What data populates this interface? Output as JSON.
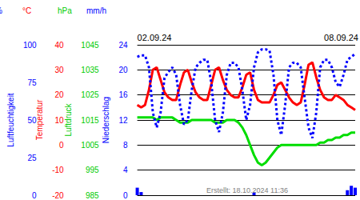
{
  "chart_data": {
    "type": "line",
    "grid": true,
    "footnote": "Erstellt: 18.10.2024 11:36",
    "categories": [
      "02.09.24",
      null,
      null,
      null,
      null,
      null,
      null,
      null,
      null,
      null,
      null,
      null,
      null,
      null,
      null,
      null,
      null,
      null,
      null,
      null,
      null,
      null,
      null,
      null,
      null,
      null,
      null,
      null,
      null,
      null,
      null,
      null,
      null,
      null,
      null,
      null,
      null,
      null,
      null,
      null,
      null,
      null,
      null,
      null,
      null,
      null,
      null,
      null,
      "08.09.24",
      null,
      null,
      null,
      null,
      null,
      null,
      null,
      null
    ],
    "axes": [
      {
        "title": "Luftfeuchtigkeit",
        "unit": "%",
        "color": "#0000ff",
        "ylim": [
          0,
          100
        ],
        "yticks": [
          0,
          25,
          50,
          75,
          100
        ]
      },
      {
        "title": "Temperatur",
        "unit": "°C",
        "color": "#ff0000",
        "ylim": [
          -20,
          40
        ],
        "yticks": [
          -20,
          -10,
          0,
          10,
          20,
          30,
          40
        ]
      },
      {
        "title": "Luftdruck",
        "unit": "hPa",
        "color": "#00cc00",
        "ylim": [
          985,
          1045
        ],
        "yticks": [
          985,
          995,
          1005,
          1015,
          1025,
          1035,
          1045
        ]
      },
      {
        "title": "Niederschlag",
        "unit": "mm/h",
        "color": "#0000ff",
        "ylim": [
          0,
          24
        ],
        "yticks": [
          0,
          4,
          8,
          12,
          16,
          20,
          24
        ]
      }
    ],
    "series": [
      {
        "axis": "Niederschlag",
        "type": "bar",
        "color": "#0000ff",
        "values": [
          1.2,
          0.5,
          0,
          0,
          0,
          0,
          0,
          0,
          0,
          0,
          0,
          0,
          0,
          0,
          0,
          0,
          0,
          0,
          0,
          0,
          0,
          0,
          0,
          0,
          0,
          0,
          0,
          0,
          0,
          0,
          0.4,
          0,
          0,
          0,
          0,
          0,
          0,
          0,
          0,
          0,
          0,
          0,
          0,
          0,
          0,
          0,
          0,
          0,
          0,
          0,
          0,
          0,
          0,
          0,
          0.8,
          1.5,
          1.2
        ]
      },
      {
        "axis": "Luftdruck",
        "type": "line",
        "line_style": "solid",
        "color": "#00dd00",
        "values": [
          1016,
          1016,
          1016,
          1016,
          1016,
          1015,
          1016,
          1016,
          1016,
          1016,
          1015,
          1014,
          1014,
          1014,
          1015,
          1015,
          1015,
          1015,
          1015,
          1015,
          1014,
          1014,
          1014,
          1015,
          1015,
          1015,
          1014,
          1012,
          1009,
          1005,
          1001,
          998,
          997,
          998,
          1000,
          1002,
          1004,
          1005,
          1005,
          1005,
          1005,
          1005,
          1005,
          1005,
          1005,
          1005,
          1005,
          1006,
          1006,
          1007,
          1007,
          1008,
          1008,
          1009,
          1009,
          1010,
          1010
        ]
      },
      {
        "axis": "Temperatur",
        "type": "line",
        "line_style": "solid",
        "color": "#ff0000",
        "values": [
          16,
          15,
          16,
          22,
          30,
          31,
          26,
          21,
          19,
          18,
          18,
          24,
          29,
          30,
          25,
          21,
          19,
          18,
          18,
          24,
          30,
          31,
          26,
          22,
          20,
          19,
          19,
          23,
          28,
          29,
          22,
          18,
          17,
          17,
          17,
          20,
          24,
          25,
          22,
          19,
          17,
          16,
          17,
          24,
          32,
          33,
          27,
          22,
          19,
          18,
          18,
          20,
          19,
          18,
          16,
          15,
          14
        ]
      },
      {
        "axis": "Luftfeuchtigkeit",
        "type": "line",
        "line_style": "dotted",
        "color": "#0000ff",
        "values": [
          92,
          93,
          93,
          85,
          55,
          45,
          55,
          78,
          82,
          85,
          80,
          60,
          47,
          50,
          70,
          85,
          88,
          90,
          90,
          75,
          50,
          42,
          55,
          80,
          88,
          88,
          85,
          70,
          50,
          60,
          85,
          95,
          97,
          97,
          96,
          80,
          50,
          40,
          60,
          85,
          88,
          88,
          85,
          65,
          45,
          38,
          55,
          85,
          90,
          90,
          85,
          75,
          72,
          80,
          90,
          92,
          94
        ]
      }
    ]
  }
}
